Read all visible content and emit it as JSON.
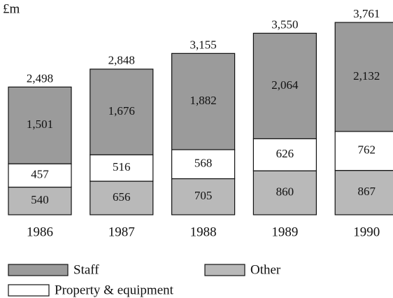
{
  "chart_data": {
    "type": "stacked_bar",
    "unit_label": "£m",
    "categories": [
      "1986",
      "1987",
      "1988",
      "1989",
      "1990"
    ],
    "series": [
      {
        "name": "Other",
        "color": "#b9b9b9",
        "values": [
          540,
          656,
          705,
          860,
          867
        ],
        "value_labels": [
          "540",
          "656",
          "705",
          "860",
          "867"
        ]
      },
      {
        "name": "Property & equipment",
        "color": "#ffffff",
        "values": [
          457,
          516,
          568,
          626,
          762
        ],
        "value_labels": [
          "457",
          "516",
          "568",
          "626",
          "762"
        ]
      },
      {
        "name": "Staff",
        "color": "#9b9b9b",
        "values": [
          1501,
          1676,
          1882,
          2064,
          2132
        ],
        "value_labels": [
          "1,501",
          "1,676",
          "1,882",
          "2,064",
          "2,132"
        ]
      }
    ],
    "totals": [
      2498,
      2848,
      3155,
      3550,
      3761
    ],
    "total_labels": [
      "2,498",
      "2,848",
      "3,155",
      "3,550",
      "3,761"
    ]
  }
}
